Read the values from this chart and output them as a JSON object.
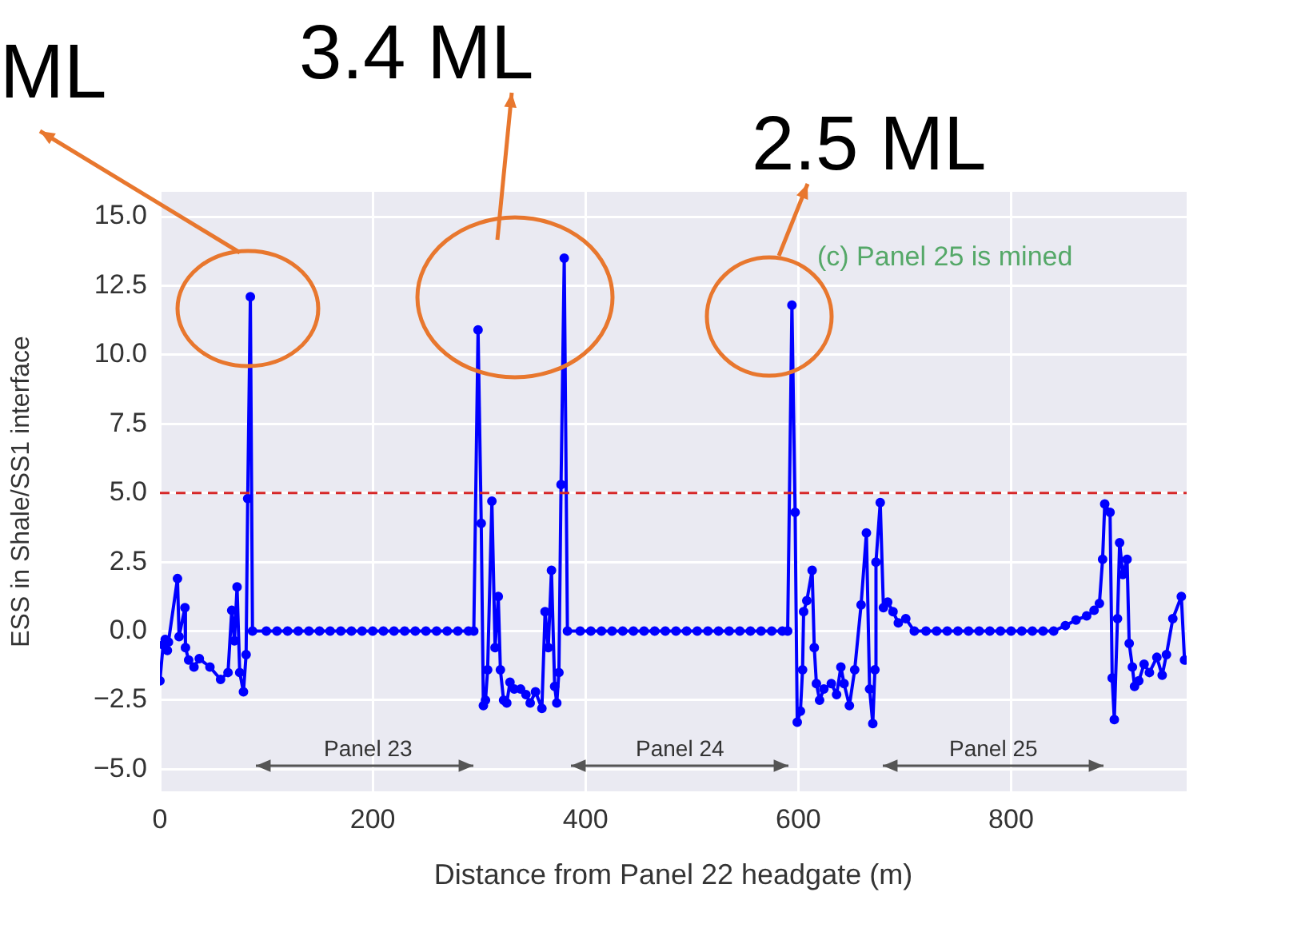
{
  "chart_data": {
    "type": "line",
    "xlabel": "Distance from Panel 22 headgate (m)",
    "ylabel": "ESS in Shale/SS1 interface",
    "xlim": [
      0,
      965
    ],
    "ylim": [
      -5.8,
      15.9
    ],
    "xticks": [
      0,
      200,
      400,
      600,
      800
    ],
    "yticks": [
      {
        "value": -5,
        "label": "−5.0"
      },
      {
        "value": -2.5,
        "label": "−2.5"
      },
      {
        "value": 0,
        "label": "0.0"
      },
      {
        "value": 2.5,
        "label": "2.5"
      },
      {
        "value": 5,
        "label": "5.0"
      },
      {
        "value": 7.5,
        "label": "7.5"
      },
      {
        "value": 10,
        "label": "10.0"
      },
      {
        "value": 12.5,
        "label": "12.5"
      },
      {
        "value": 15,
        "label": "15.0"
      }
    ],
    "grid": true,
    "legend": false,
    "marker": "circle",
    "line_style": "solid",
    "series": [
      {
        "color": "#0000ff",
        "x": [
          0,
          3,
          5,
          7,
          8,
          16.5,
          18,
          23.5,
          24,
          27,
          32,
          37,
          47,
          57,
          64,
          67.5,
          70,
          72.5,
          75,
          78.5,
          81,
          82.5,
          85,
          87,
          100,
          110,
          120,
          130,
          140,
          150,
          160,
          170,
          180,
          190,
          200,
          210,
          220,
          230,
          240,
          250,
          260,
          270,
          280,
          290,
          295,
          299,
          302,
          304,
          306,
          308,
          312,
          315,
          318,
          320,
          323,
          326,
          329,
          333,
          339,
          344,
          348,
          353,
          359,
          362,
          365,
          368,
          371,
          373,
          375,
          377,
          380,
          383,
          395,
          405,
          415,
          425,
          435,
          445,
          455,
          465,
          475,
          485,
          495,
          505,
          515,
          525,
          535,
          545,
          555,
          565,
          575,
          585,
          590,
          594,
          597,
          599,
          602,
          604,
          605,
          608,
          613,
          615,
          617,
          620,
          624,
          631,
          636,
          640,
          643,
          648,
          653,
          659,
          664,
          667,
          670,
          672,
          673,
          677,
          680,
          684,
          689,
          694,
          701,
          709,
          720,
          730,
          740,
          750,
          760,
          770,
          780,
          790,
          800,
          810,
          820,
          830,
          840,
          851,
          861,
          871,
          878,
          883,
          886,
          888,
          893,
          895,
          897,
          900,
          902,
          905,
          909,
          911,
          914,
          916,
          920,
          925,
          930,
          937,
          942,
          946,
          952,
          960,
          963
        ],
        "values": [
          -1.8,
          -0.5,
          -0.3,
          -0.7,
          -0.4,
          1.9,
          -0.2,
          0.85,
          -0.6,
          -1.05,
          -1.3,
          -1.0,
          -1.3,
          -1.75,
          -1.5,
          0.75,
          -0.35,
          1.6,
          -1.5,
          -2.2,
          -0.85,
          4.8,
          12.1,
          0,
          0,
          0,
          0,
          0,
          0,
          0,
          0,
          0,
          0,
          0,
          0,
          0,
          0,
          0,
          0,
          0,
          0,
          0,
          0,
          0,
          0,
          10.9,
          3.9,
          -2.7,
          -2.5,
          -1.4,
          4.7,
          -0.6,
          1.25,
          -1.4,
          -2.5,
          -2.6,
          -1.85,
          -2.1,
          -2.1,
          -2.3,
          -2.6,
          -2.2,
          -2.8,
          0.7,
          -0.6,
          2.2,
          -2.0,
          -2.6,
          -1.5,
          5.3,
          13.5,
          0,
          0,
          0,
          0,
          0,
          0,
          0,
          0,
          0,
          0,
          0,
          0,
          0,
          0,
          0,
          0,
          0,
          0,
          0,
          0,
          0,
          0,
          11.8,
          4.3,
          -3.3,
          -2.9,
          -1.4,
          0.7,
          1.1,
          2.2,
          -0.6,
          -1.9,
          -2.5,
          -2.1,
          -1.9,
          -2.3,
          -1.3,
          -1.9,
          -2.7,
          -1.4,
          0.95,
          3.55,
          -2.1,
          -3.35,
          -1.4,
          2.5,
          4.65,
          0.85,
          1.05,
          0.7,
          0.3,
          0.45,
          0,
          0,
          0,
          0,
          0,
          0,
          0,
          0,
          0,
          0,
          0,
          0,
          0,
          0,
          0.2,
          0.4,
          0.55,
          0.75,
          1.0,
          2.6,
          4.6,
          4.3,
          -1.7,
          -3.2,
          0.45,
          3.2,
          2.05,
          2.6,
          -0.45,
          -1.3,
          -2.0,
          -1.8,
          -1.2,
          -1.5,
          -0.95,
          -1.6,
          -0.85,
          0.45,
          1.25,
          -1.05
        ]
      }
    ],
    "ref_lines": [
      {
        "axis": "y",
        "value": 5,
        "color": "#d62728",
        "line_style": "dashed"
      }
    ],
    "annotations": [
      "ML",
      "3.4 ML",
      "2.5 ML",
      "(c) Panel 25 is mined",
      "Panel 23",
      "Panel 24",
      "Panel 25"
    ]
  }
}
